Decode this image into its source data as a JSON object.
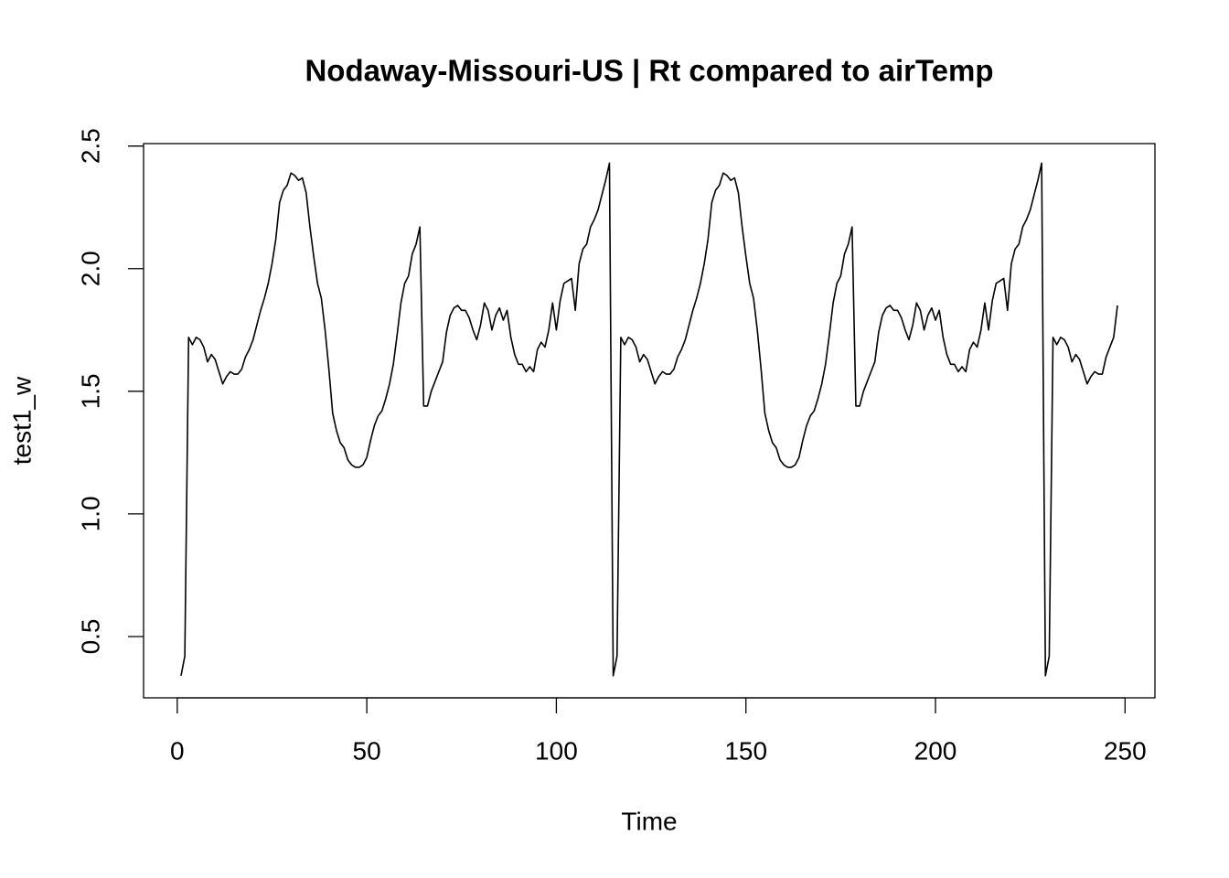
{
  "chart_data": {
    "type": "line",
    "title": "Nodaway-Missouri-US | Rt compared to airTemp",
    "xlabel": "Time",
    "ylabel": "test1_w",
    "x": [
      1,
      2,
      3,
      4,
      5,
      6,
      7,
      8,
      9,
      10,
      11,
      12,
      13,
      14,
      15,
      16,
      17,
      18,
      19,
      20,
      21,
      22,
      23,
      24,
      25,
      26,
      27,
      28,
      29,
      30,
      31,
      32,
      33,
      34,
      35,
      36,
      37,
      38,
      39,
      40,
      41,
      42,
      43,
      44,
      45,
      46,
      47,
      48,
      49,
      50,
      51,
      52,
      53,
      54,
      55,
      56,
      57,
      58,
      59,
      60,
      61,
      62,
      63,
      64,
      65,
      66,
      67,
      68,
      69,
      70,
      71,
      72,
      73,
      74,
      75,
      76,
      77,
      78,
      79,
      80,
      81,
      82,
      83,
      84,
      85,
      86,
      87,
      88,
      89,
      90,
      91,
      92,
      93,
      94,
      95,
      96,
      97,
      98,
      99,
      100,
      101,
      102,
      103,
      104,
      105,
      106,
      107,
      108,
      109,
      110,
      111,
      112,
      113,
      114,
      115,
      116,
      117,
      118,
      119,
      120,
      121,
      122,
      123,
      124,
      125,
      126,
      127,
      128,
      129,
      130,
      131,
      132,
      133,
      134,
      135,
      136,
      137,
      138,
      139,
      140,
      141,
      142,
      143,
      144,
      145,
      146,
      147,
      148,
      149,
      150,
      151,
      152,
      153,
      154,
      155,
      156,
      157,
      158,
      159,
      160,
      161,
      162,
      163,
      164,
      165,
      166,
      167,
      168,
      169,
      170,
      171,
      172,
      173,
      174,
      175,
      176,
      177,
      178,
      179,
      180,
      181,
      182,
      183,
      184,
      185,
      186,
      187,
      188,
      189,
      190,
      191,
      192,
      193,
      194,
      195,
      196,
      197,
      198,
      199,
      200,
      201,
      202,
      203,
      204,
      205,
      206,
      207,
      208,
      209,
      210,
      211,
      212,
      213,
      214,
      215,
      216,
      217,
      218,
      219,
      220,
      221,
      222,
      223,
      224,
      225,
      226,
      227,
      228,
      229,
      230,
      231,
      232,
      233,
      234,
      235,
      236,
      237,
      238,
      239,
      240,
      241,
      242,
      243,
      244,
      245,
      246,
      247,
      248
    ],
    "series": [
      {
        "color": "#000000",
        "values": [
          0.34,
          0.42,
          1.72,
          1.69,
          1.72,
          1.71,
          1.68,
          1.62,
          1.65,
          1.63,
          1.58,
          1.53,
          1.56,
          1.58,
          1.57,
          1.57,
          1.59,
          1.64,
          1.67,
          1.71,
          1.77,
          1.83,
          1.88,
          1.94,
          2.02,
          2.12,
          2.27,
          2.32,
          2.34,
          2.39,
          2.38,
          2.36,
          2.37,
          2.31,
          2.17,
          2.05,
          1.94,
          1.88,
          1.75,
          1.59,
          1.41,
          1.34,
          1.29,
          1.27,
          1.22,
          1.2,
          1.19,
          1.19,
          1.2,
          1.23,
          1.3,
          1.36,
          1.4,
          1.42,
          1.47,
          1.53,
          1.61,
          1.73,
          1.86,
          1.94,
          1.97,
          2.06,
          2.1,
          2.17,
          1.44,
          1.44,
          1.5,
          1.54,
          1.58,
          1.62,
          1.74,
          1.81,
          1.84,
          1.85,
          1.83,
          1.83,
          1.8,
          1.75,
          1.71,
          1.77,
          1.86,
          1.83,
          1.75,
          1.81,
          1.84,
          1.79,
          1.83,
          1.72,
          1.65,
          1.61,
          1.61,
          1.58,
          1.6,
          1.58,
          1.67,
          1.7,
          1.68,
          1.75,
          1.86,
          1.75,
          1.87,
          1.94,
          1.95,
          1.96,
          1.83,
          2.02,
          2.08,
          2.1,
          2.17,
          2.2,
          2.24,
          2.3,
          2.36,
          2.43,
          0.34,
          0.42,
          1.72,
          1.69,
          1.72,
          1.71,
          1.68,
          1.62,
          1.65,
          1.63,
          1.58,
          1.53,
          1.56,
          1.58,
          1.57,
          1.57,
          1.59,
          1.64,
          1.67,
          1.71,
          1.77,
          1.83,
          1.88,
          1.94,
          2.02,
          2.12,
          2.27,
          2.32,
          2.34,
          2.39,
          2.38,
          2.36,
          2.37,
          2.31,
          2.17,
          2.05,
          1.94,
          1.88,
          1.75,
          1.59,
          1.41,
          1.34,
          1.29,
          1.27,
          1.22,
          1.2,
          1.19,
          1.19,
          1.2,
          1.23,
          1.3,
          1.36,
          1.4,
          1.42,
          1.47,
          1.53,
          1.61,
          1.73,
          1.86,
          1.94,
          1.97,
          2.06,
          2.1,
          2.17,
          1.44,
          1.44,
          1.5,
          1.54,
          1.58,
          1.62,
          1.74,
          1.81,
          1.84,
          1.85,
          1.83,
          1.83,
          1.8,
          1.75,
          1.71,
          1.77,
          1.86,
          1.83,
          1.75,
          1.81,
          1.84,
          1.79,
          1.83,
          1.72,
          1.65,
          1.61,
          1.61,
          1.58,
          1.6,
          1.58,
          1.67,
          1.7,
          1.68,
          1.75,
          1.86,
          1.75,
          1.87,
          1.94,
          1.95,
          1.96,
          1.83,
          2.02,
          2.08,
          2.1,
          2.17,
          2.2,
          2.24,
          2.3,
          2.36,
          2.43,
          0.34,
          0.42,
          1.72,
          1.69,
          1.72,
          1.71,
          1.68,
          1.62,
          1.65,
          1.63,
          1.58,
          1.53,
          1.56,
          1.58,
          1.57,
          1.57,
          1.64,
          1.68,
          1.72,
          1.85
        ]
      }
    ],
    "xlim": [
      -8.88,
      257.88
    ],
    "ylim": [
      0.25,
      2.51
    ],
    "xticks": [
      0,
      50,
      100,
      150,
      200,
      250
    ],
    "yticks": [
      0.5,
      {
        "value": 1,
        "label": "1.0"
      },
      1.5,
      {
        "value": 2,
        "label": "2.0"
      },
      2.5
    ]
  }
}
